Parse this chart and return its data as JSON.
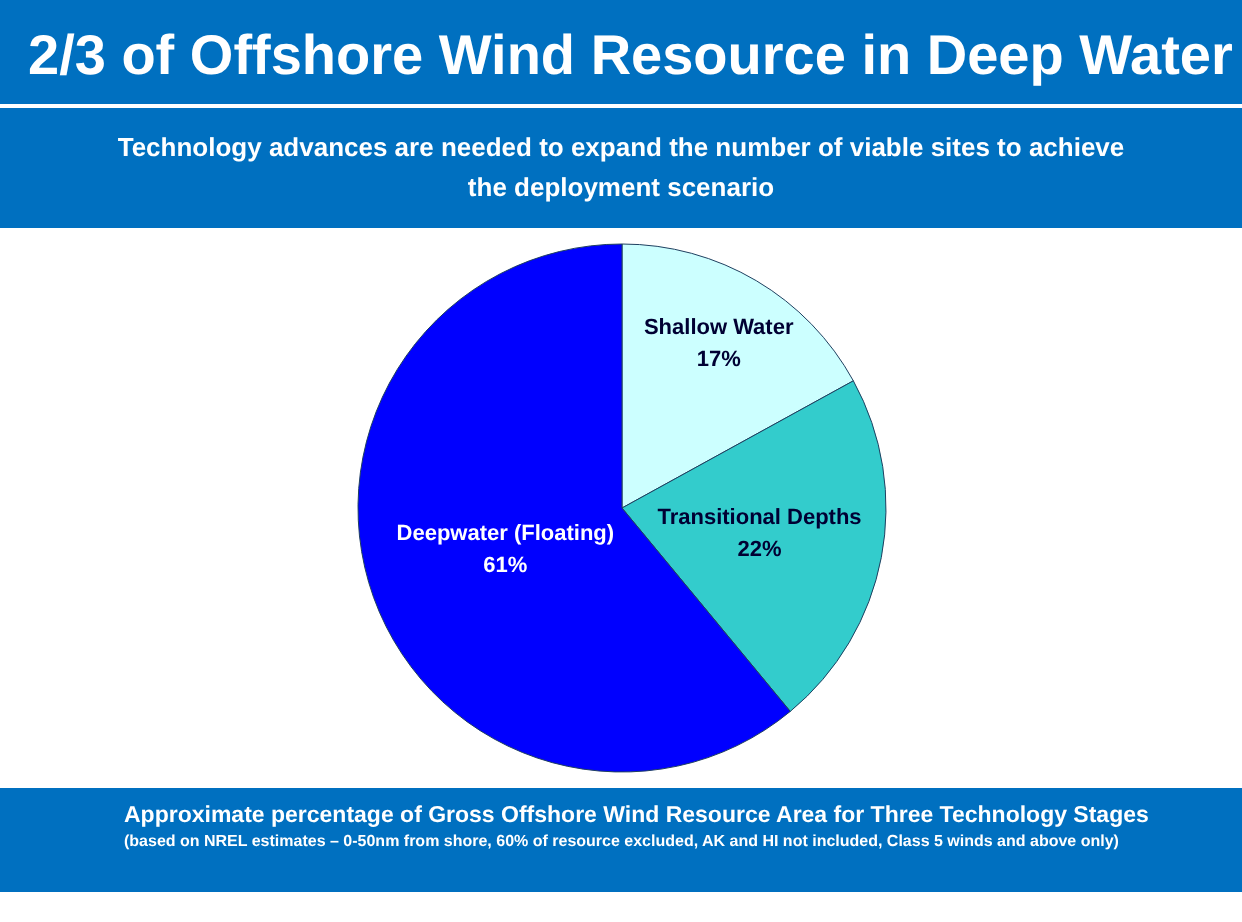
{
  "chart_data": {
    "type": "pie",
    "title": "2/3 of Offshore Wind Resource in Deep Water",
    "subtitle": "Technology advances are needed to expand the number of viable sites to achieve the deployment scenario",
    "categories": [
      "Shallow Water",
      "Transitional Depths",
      "Deepwater (Floating)"
    ],
    "values": [
      17,
      22,
      61
    ],
    "value_labels": [
      "17%",
      "22%",
      "61%"
    ],
    "colors": [
      "#ccffff",
      "#33cccc",
      "#0000ff"
    ],
    "annotations": [
      "Approximate percentage of Gross Offshore Wind Resource Area for Three Technology Stages",
      "(based on NREL estimates – 0-50nm from shore, 60% of resource excluded, AK and HI not included, Class 5 winds and above only)"
    ],
    "legend": false
  }
}
